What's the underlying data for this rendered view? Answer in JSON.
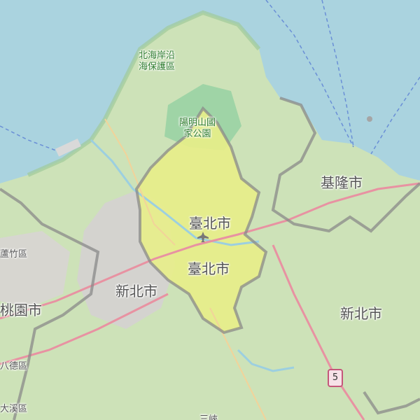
{
  "map": {
    "labels": {
      "keelung": "基隆市",
      "taipei_north": "臺北市",
      "taipei_center": "臺北市",
      "new_taipei_west": "新北市",
      "new_taipei_east": "新北市",
      "taoyuan": "桃園市",
      "coastal_reserve": "北海岸沿\n海保護區",
      "yangmingshan": "陽明山國\n家公園",
      "luzhu": "蘆竹區",
      "bade": "八德區",
      "daxi": "大溪區",
      "sanxia": "三峽",
      "highway": "5"
    },
    "colors": {
      "sea": "#aad3df",
      "land": "#cde2b8",
      "taipei": "#e8ee88",
      "border": "#8a8a8a",
      "park": "#6fbf8a",
      "urban": "#d6d0d4",
      "road_major": "#e892a2",
      "road_minor": "#f2d39a"
    },
    "icons": [
      "airport-icon"
    ]
  }
}
